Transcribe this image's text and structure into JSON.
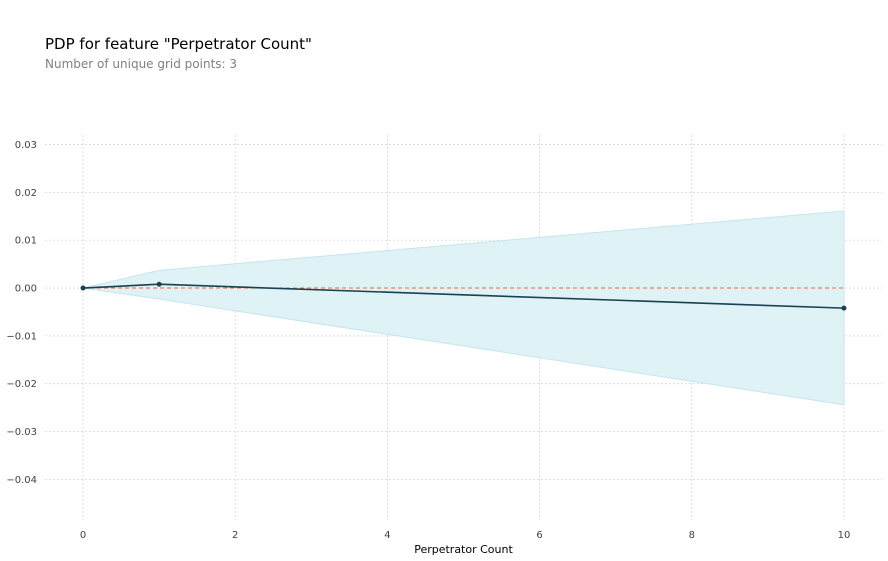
{
  "title": "PDP for feature \"Perpetrator Count\"",
  "subtitle": "Number of unique grid points: 3",
  "chart_data": {
    "type": "line",
    "xlabel": "Perpetrator Count",
    "ylabel": "",
    "xlim": [
      -0.5,
      10.5
    ],
    "ylim": [
      -0.0485,
      0.032
    ],
    "xticks": [
      0,
      2,
      4,
      6,
      8,
      10
    ],
    "xtick_labels": [
      "0",
      "2",
      "4",
      "6",
      "8",
      "10"
    ],
    "yticks": [
      0.03,
      0.02,
      0.01,
      0.0,
      -0.01,
      -0.02,
      -0.03,
      -0.04
    ],
    "ytick_labels": [
      "0.03",
      "0.02",
      "0.01",
      "0.00",
      "−0.01",
      "−0.02",
      "−0.03",
      "−0.04"
    ],
    "grid": true,
    "series": [
      {
        "x": [
          0,
          1,
          10
        ],
        "values": [
          0.0,
          0.0008,
          -0.0042
        ],
        "upper": [
          0.0,
          0.0037,
          0.0161
        ],
        "lower": [
          0.0,
          -0.0023,
          -0.0244
        ]
      }
    ],
    "reference_line": {
      "y": 0,
      "style": "dashed"
    },
    "colors": {
      "line": "#1a4150",
      "band": "#dff2f6",
      "band_edge": "#c4e6ee",
      "reference": "#ee6633",
      "grid": "#d6d6d6"
    }
  }
}
